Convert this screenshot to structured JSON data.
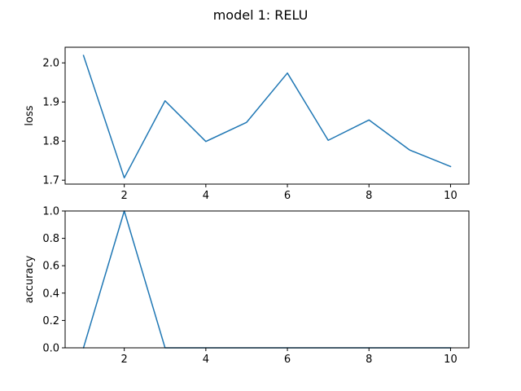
{
  "title": "model 1: RELU",
  "chart_data": [
    {
      "type": "line",
      "ylabel": "loss",
      "xlabel": "",
      "x": [
        1,
        2,
        3,
        4,
        5,
        6,
        7,
        8,
        9,
        10
      ],
      "series": [
        {
          "values": [
            2.019,
            1.706,
            1.903,
            1.799,
            1.848,
            1.974,
            1.802,
            1.854,
            1.777,
            1.735
          ],
          "color": "#1f77b4"
        }
      ],
      "xlim": [
        0.55,
        10.45
      ],
      "ylim": [
        1.69,
        2.04
      ],
      "xticks": [
        2,
        4,
        6,
        8,
        10
      ],
      "xtick_labels": [
        "2",
        "4",
        "6",
        "8",
        "10"
      ],
      "yticks": [
        1.7,
        1.8,
        1.9,
        2.0
      ],
      "ytick_labels": [
        "1.7",
        "1.8",
        "1.9",
        "2.0"
      ],
      "grid": false
    },
    {
      "type": "line",
      "ylabel": "accuracy",
      "xlabel": "",
      "x": [
        1,
        2,
        3,
        4,
        5,
        6,
        7,
        8,
        9,
        10
      ],
      "series": [
        {
          "values": [
            0,
            1,
            0,
            0,
            0,
            0,
            0,
            0,
            0,
            0
          ],
          "color": "#1f77b4"
        }
      ],
      "xlim": [
        0.55,
        10.45
      ],
      "ylim": [
        0,
        1
      ],
      "xticks": [
        2,
        4,
        6,
        8,
        10
      ],
      "xtick_labels": [
        "2",
        "4",
        "6",
        "8",
        "10"
      ],
      "yticks": [
        0,
        0.2,
        0.4,
        0.6,
        0.8,
        1.0
      ],
      "ytick_labels": [
        "0.0",
        "0.2",
        "0.4",
        "0.6",
        "0.8",
        "1.0"
      ],
      "grid": false
    }
  ]
}
